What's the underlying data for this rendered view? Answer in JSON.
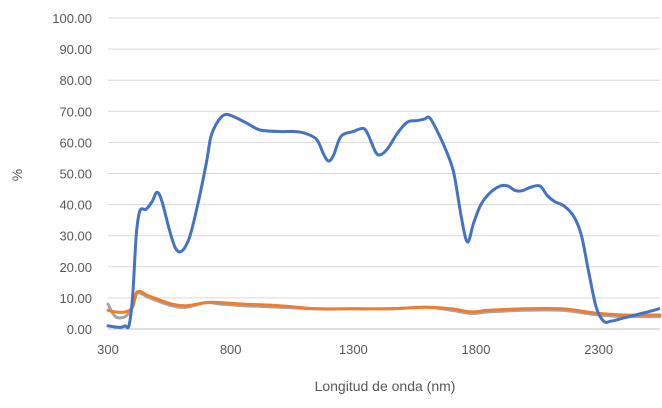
{
  "chart_data": {
    "type": "line",
    "title": "",
    "xlabel": "Longitud de onda (nm)",
    "ylabel": "%",
    "xlim": [
      300,
      2550
    ],
    "ylim": [
      0,
      100
    ],
    "xticks": [
      300,
      800,
      1300,
      1800,
      2300
    ],
    "yticks": [
      0,
      10,
      20,
      30,
      40,
      50,
      60,
      70,
      80,
      90,
      100
    ],
    "x_tick_labels": [
      "300",
      "800",
      "1300",
      "1800",
      "2300"
    ],
    "y_tick_labels": [
      "0.00",
      "10.00",
      "20.00",
      "30.00",
      "40.00",
      "50.00",
      "60.00",
      "70.00",
      "80.00",
      "90.00",
      "100.00"
    ],
    "grid": "horizontal",
    "legend": "none",
    "series": [
      {
        "color": "#4472c4",
        "points": [
          [
            300,
            1
          ],
          [
            350,
            0.5
          ],
          [
            370,
            1
          ],
          [
            385,
            1
          ],
          [
            400,
            10
          ],
          [
            415,
            30
          ],
          [
            430,
            38
          ],
          [
            455,
            38.5
          ],
          [
            480,
            41
          ],
          [
            500,
            44
          ],
          [
            520,
            41
          ],
          [
            550,
            32
          ],
          [
            575,
            26
          ],
          [
            600,
            25
          ],
          [
            630,
            29
          ],
          [
            660,
            38
          ],
          [
            700,
            53
          ],
          [
            720,
            62
          ],
          [
            750,
            67
          ],
          [
            780,
            69
          ],
          [
            820,
            68
          ],
          [
            870,
            66
          ],
          [
            920,
            64
          ],
          [
            1000,
            63.5
          ],
          [
            1060,
            63.5
          ],
          [
            1100,
            63
          ],
          [
            1150,
            61
          ],
          [
            1180,
            56
          ],
          [
            1200,
            54
          ],
          [
            1220,
            56
          ],
          [
            1250,
            62
          ],
          [
            1300,
            63.5
          ],
          [
            1340,
            64.5
          ],
          [
            1360,
            62.5
          ],
          [
            1390,
            57
          ],
          [
            1410,
            56
          ],
          [
            1440,
            58
          ],
          [
            1480,
            63
          ],
          [
            1520,
            66.5
          ],
          [
            1560,
            67
          ],
          [
            1590,
            67.5
          ],
          [
            1610,
            68
          ],
          [
            1640,
            64
          ],
          [
            1680,
            57
          ],
          [
            1710,
            50
          ],
          [
            1740,
            36
          ],
          [
            1765,
            28
          ],
          [
            1790,
            34
          ],
          [
            1820,
            40
          ],
          [
            1860,
            44
          ],
          [
            1900,
            46
          ],
          [
            1930,
            46
          ],
          [
            1960,
            44.5
          ],
          [
            1990,
            44.5
          ],
          [
            2020,
            45.5
          ],
          [
            2060,
            46
          ],
          [
            2090,
            43
          ],
          [
            2120,
            41
          ],
          [
            2160,
            39.5
          ],
          [
            2200,
            36
          ],
          [
            2230,
            30
          ],
          [
            2260,
            18
          ],
          [
            2290,
            7
          ],
          [
            2320,
            2.5
          ],
          [
            2350,
            2.5
          ],
          [
            2400,
            3.5
          ],
          [
            2450,
            4.5
          ],
          [
            2500,
            5.5
          ],
          [
            2545,
            6.5
          ]
        ]
      },
      {
        "color": "#ed7d31",
        "points": [
          [
            300,
            6
          ],
          [
            330,
            5.5
          ],
          [
            370,
            5.5
          ],
          [
            400,
            7
          ],
          [
            420,
            12
          ],
          [
            470,
            10.5
          ],
          [
            560,
            8
          ],
          [
            620,
            7.5
          ],
          [
            700,
            8.5
          ],
          [
            760,
            8.5
          ],
          [
            850,
            8
          ],
          [
            1000,
            7.5
          ],
          [
            1150,
            6.5
          ],
          [
            1300,
            6.5
          ],
          [
            1450,
            6.5
          ],
          [
            1600,
            7
          ],
          [
            1700,
            6.5
          ],
          [
            1780,
            5.5
          ],
          [
            1850,
            6
          ],
          [
            2000,
            6.5
          ],
          [
            2150,
            6.5
          ],
          [
            2250,
            5.5
          ],
          [
            2300,
            5
          ],
          [
            2400,
            4.5
          ],
          [
            2550,
            4.5
          ]
        ]
      },
      {
        "color": "#a5a5a5",
        "points": [
          [
            300,
            8
          ],
          [
            330,
            4
          ],
          [
            370,
            4
          ],
          [
            400,
            7
          ],
          [
            420,
            11.5
          ],
          [
            470,
            10
          ],
          [
            560,
            7.5
          ],
          [
            620,
            7
          ],
          [
            700,
            8.5
          ],
          [
            760,
            8
          ],
          [
            850,
            7.5
          ],
          [
            1000,
            7
          ],
          [
            1150,
            6.5
          ],
          [
            1300,
            6.5
          ],
          [
            1450,
            6.5
          ],
          [
            1600,
            7
          ],
          [
            1700,
            6
          ],
          [
            1780,
            5
          ],
          [
            1850,
            5.5
          ],
          [
            2000,
            6
          ],
          [
            2150,
            6
          ],
          [
            2250,
            5
          ],
          [
            2300,
            4.5
          ],
          [
            2400,
            4
          ],
          [
            2550,
            4
          ]
        ]
      }
    ]
  }
}
